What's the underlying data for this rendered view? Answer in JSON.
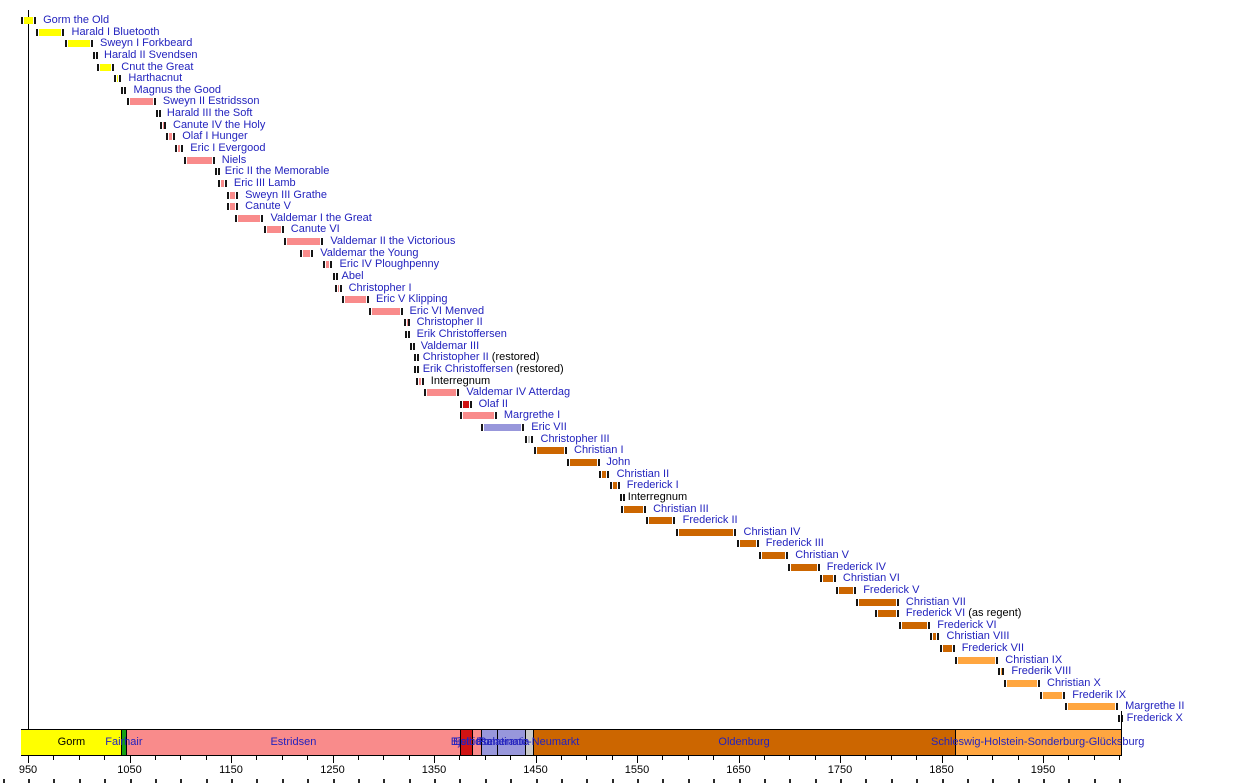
{
  "colors": {
    "gorm": "#FFFF00",
    "fairhair": "#15A015",
    "estridsen": "#F98B8B",
    "bjelbo": "#D01313",
    "pomerania": "#9897DB",
    "neumarkt": "#C9C9C9",
    "oldenburg": "#CC6600",
    "glucksburg": "#FFA640",
    "interregnum": "#1A1A1A",
    "link_text": "#2323BE",
    "plain_text": "#000000",
    "axis": "#000000"
  },
  "chart_data": {
    "type": "bar",
    "variant": "timeline-gantt",
    "title": "",
    "xlabel": "",
    "ylabel": "",
    "x_axis": {
      "min": 943.5,
      "max": 2026.5,
      "major_tick_labels": [
        "950",
        "1050",
        "1150",
        "1250",
        "1350",
        "1450",
        "1550",
        "1650",
        "1750",
        "1850",
        "1950"
      ],
      "major_ticks": [
        950,
        1050,
        1150,
        1250,
        1350,
        1450,
        1550,
        1650,
        1750,
        1850,
        1950
      ],
      "minor_step": 25,
      "grid": false
    },
    "legend_position": "none",
    "monarchs": [
      {
        "name": "Gorm the Old",
        "start": 936,
        "end": 958,
        "dynasty": "gorm"
      },
      {
        "name": "Harald I Bluetooth",
        "start": 958,
        "end": 986,
        "dynasty": "gorm"
      },
      {
        "name": "Sweyn I Forkbeard",
        "start": 986,
        "end": 1014,
        "dynasty": "gorm"
      },
      {
        "name": "Harald II Svendsen",
        "start": 1014,
        "end": 1018,
        "dynasty": "gorm"
      },
      {
        "name": "Cnut the Great",
        "start": 1018,
        "end": 1035,
        "dynasty": "gorm"
      },
      {
        "name": "Harthacnut",
        "start": 1035,
        "end": 1042,
        "dynasty": "gorm"
      },
      {
        "name": "Magnus the Good",
        "start": 1042,
        "end": 1047,
        "dynasty": "fairhair"
      },
      {
        "name": "Sweyn II Estridsson",
        "start": 1047,
        "end": 1076,
        "dynasty": "estridsen"
      },
      {
        "name": "Harald III the Soft",
        "start": 1076,
        "end": 1080,
        "dynasty": "estridsen"
      },
      {
        "name": "Canute IV the Holy",
        "start": 1080,
        "end": 1086,
        "dynasty": "estridsen"
      },
      {
        "name": "Olaf I Hunger",
        "start": 1086,
        "end": 1095,
        "dynasty": "estridsen"
      },
      {
        "name": "Eric I Evergood",
        "start": 1095,
        "end": 1103,
        "dynasty": "estridsen"
      },
      {
        "name": "Niels",
        "start": 1104,
        "end": 1134,
        "dynasty": "estridsen"
      },
      {
        "name": "Eric II the Memorable",
        "start": 1134,
        "end": 1137,
        "dynasty": "estridsen"
      },
      {
        "name": "Eric III Lamb",
        "start": 1137,
        "end": 1146,
        "dynasty": "estridsen"
      },
      {
        "name": "Sweyn III Grathe",
        "start": 1146,
        "end": 1157,
        "dynasty": "estridsen"
      },
      {
        "name": "Canute V",
        "start": 1146,
        "end": 1157,
        "dynasty": "estridsen"
      },
      {
        "name": "Valdemar I the Great",
        "start": 1154,
        "end": 1182,
        "dynasty": "estridsen"
      },
      {
        "name": "Canute VI",
        "start": 1182,
        "end": 1202,
        "dynasty": "estridsen"
      },
      {
        "name": "Valdemar II the Victorious",
        "start": 1202,
        "end": 1241,
        "dynasty": "estridsen"
      },
      {
        "name": "Valdemar the Young",
        "start": 1218,
        "end": 1231,
        "dynasty": "estridsen"
      },
      {
        "name": "Eric IV Ploughpenny",
        "start": 1241,
        "end": 1250,
        "dynasty": "estridsen"
      },
      {
        "name": "Abel",
        "start": 1250,
        "end": 1252,
        "dynasty": "estridsen"
      },
      {
        "name": "Christopher I",
        "start": 1252,
        "end": 1259,
        "dynasty": "estridsen"
      },
      {
        "name": "Eric V Klipping",
        "start": 1259,
        "end": 1286,
        "dynasty": "estridsen"
      },
      {
        "name": "Eric VI Menved",
        "start": 1286,
        "end": 1319,
        "dynasty": "estridsen"
      },
      {
        "name": "Christopher II",
        "start": 1320,
        "end": 1326,
        "dynasty": "estridsen"
      },
      {
        "name": "Erik Christoffersen",
        "start": 1321,
        "end": 1326,
        "dynasty": "estridsen"
      },
      {
        "name": "Valdemar III",
        "start": 1326,
        "end": 1330,
        "dynasty": "estridsen"
      },
      {
        "name": "Christopher II",
        "suffix": " (restored)",
        "start": 1330,
        "end": 1332,
        "dynasty": "estridsen"
      },
      {
        "name": "Erik Christoffersen",
        "suffix": " (restored)",
        "start": 1330,
        "end": 1332,
        "dynasty": "estridsen"
      },
      {
        "name": "Interregnum",
        "start": 1332,
        "end": 1340,
        "dynasty": "estridsen",
        "text": "black"
      },
      {
        "name": "Valdemar IV Atterdag",
        "start": 1340,
        "end": 1375,
        "dynasty": "estridsen"
      },
      {
        "name": "Olaf II",
        "start": 1376,
        "end": 1387,
        "dynasty": "bjelbo"
      },
      {
        "name": "Margrethe I",
        "start": 1376,
        "end": 1412,
        "dynasty": "estridsen"
      },
      {
        "name": "Eric VII",
        "start": 1396,
        "end": 1439,
        "dynasty": "pomerania"
      },
      {
        "name": "Christopher III",
        "start": 1440,
        "end": 1448,
        "dynasty": "neumarkt"
      },
      {
        "name": "Christian I",
        "start": 1448,
        "end": 1481,
        "dynasty": "oldenburg"
      },
      {
        "name": "John",
        "start": 1481,
        "end": 1513,
        "dynasty": "oldenburg"
      },
      {
        "name": "Christian II",
        "start": 1513,
        "end": 1523,
        "dynasty": "oldenburg"
      },
      {
        "name": "Frederick I",
        "start": 1523,
        "end": 1533,
        "dynasty": "oldenburg"
      },
      {
        "name": "Interregnum",
        "start": 1533,
        "end": 1534,
        "dynasty": "interregnum",
        "text": "black"
      },
      {
        "name": "Christian III",
        "start": 1534,
        "end": 1559,
        "dynasty": "oldenburg"
      },
      {
        "name": "Frederick II",
        "start": 1559,
        "end": 1588,
        "dynasty": "oldenburg"
      },
      {
        "name": "Christian IV",
        "start": 1588,
        "end": 1648,
        "dynasty": "oldenburg"
      },
      {
        "name": "Frederick III",
        "start": 1648,
        "end": 1670,
        "dynasty": "oldenburg"
      },
      {
        "name": "Christian V",
        "start": 1670,
        "end": 1699,
        "dynasty": "oldenburg"
      },
      {
        "name": "Frederick IV",
        "start": 1699,
        "end": 1730,
        "dynasty": "oldenburg"
      },
      {
        "name": "Christian VI",
        "start": 1730,
        "end": 1746,
        "dynasty": "oldenburg"
      },
      {
        "name": "Frederick V",
        "start": 1746,
        "end": 1766,
        "dynasty": "oldenburg"
      },
      {
        "name": "Christian VII",
        "start": 1766,
        "end": 1808,
        "dynasty": "oldenburg"
      },
      {
        "name": "Frederick VI",
        "suffix": " (as regent)",
        "start": 1784,
        "end": 1808,
        "dynasty": "oldenburg"
      },
      {
        "name": "Frederick VI",
        "start": 1808,
        "end": 1839,
        "dynasty": "oldenburg"
      },
      {
        "name": "Christian VIII",
        "start": 1839,
        "end": 1848,
        "dynasty": "oldenburg"
      },
      {
        "name": "Frederick VII",
        "start": 1848,
        "end": 1863,
        "dynasty": "oldenburg"
      },
      {
        "name": "Christian IX",
        "start": 1863,
        "end": 1906,
        "dynasty": "glucksburg"
      },
      {
        "name": "Frederik VIII",
        "start": 1906,
        "end": 1912,
        "dynasty": "glucksburg"
      },
      {
        "name": "Christian X",
        "start": 1912,
        "end": 1947,
        "dynasty": "glucksburg"
      },
      {
        "name": "Frederik IX",
        "start": 1947,
        "end": 1972,
        "dynasty": "glucksburg"
      },
      {
        "name": "Margrethe II",
        "start": 1972,
        "end": 2024,
        "dynasty": "glucksburg"
      },
      {
        "name": "Frederick X",
        "start": 2024,
        "end": 2025.5,
        "dynasty": "glucksburg"
      }
    ],
    "dynasty_band": [
      {
        "label": "Gorm",
        "start": 943.5,
        "end": 1042,
        "color": "gorm",
        "text": "black"
      },
      {
        "label": "Fairhair",
        "start": 1042,
        "end": 1047,
        "color": "fairhair",
        "text": "blue"
      },
      {
        "label": "Estridsen",
        "start": 1047,
        "end": 1376,
        "color": "estridsen",
        "text": "blue"
      },
      {
        "label": "Bjelbo",
        "start": 1376,
        "end": 1387,
        "color": "bjelbo",
        "text": "blue"
      },
      {
        "label": "Estridsen",
        "start": 1387,
        "end": 1396,
        "color": "estridsen",
        "text": "blue"
      },
      {
        "label": "Pomerania",
        "start": 1396,
        "end": 1439.5,
        "color": "pomerania",
        "text": "blue"
      },
      {
        "label": "Palatinate-Neumarkt",
        "start": 1439.5,
        "end": 1448,
        "color": "neumarkt",
        "text": "blue"
      },
      {
        "label": "Oldenburg",
        "start": 1448,
        "end": 1863,
        "color": "oldenburg",
        "text": "blue"
      },
      {
        "label": "Schleswig-Holstein-Sonderburg-Glücksburg",
        "start": 1863,
        "end": 2026.5,
        "color": "glucksburg",
        "text": "blue"
      }
    ],
    "band_dividers": [
      1412
    ]
  }
}
